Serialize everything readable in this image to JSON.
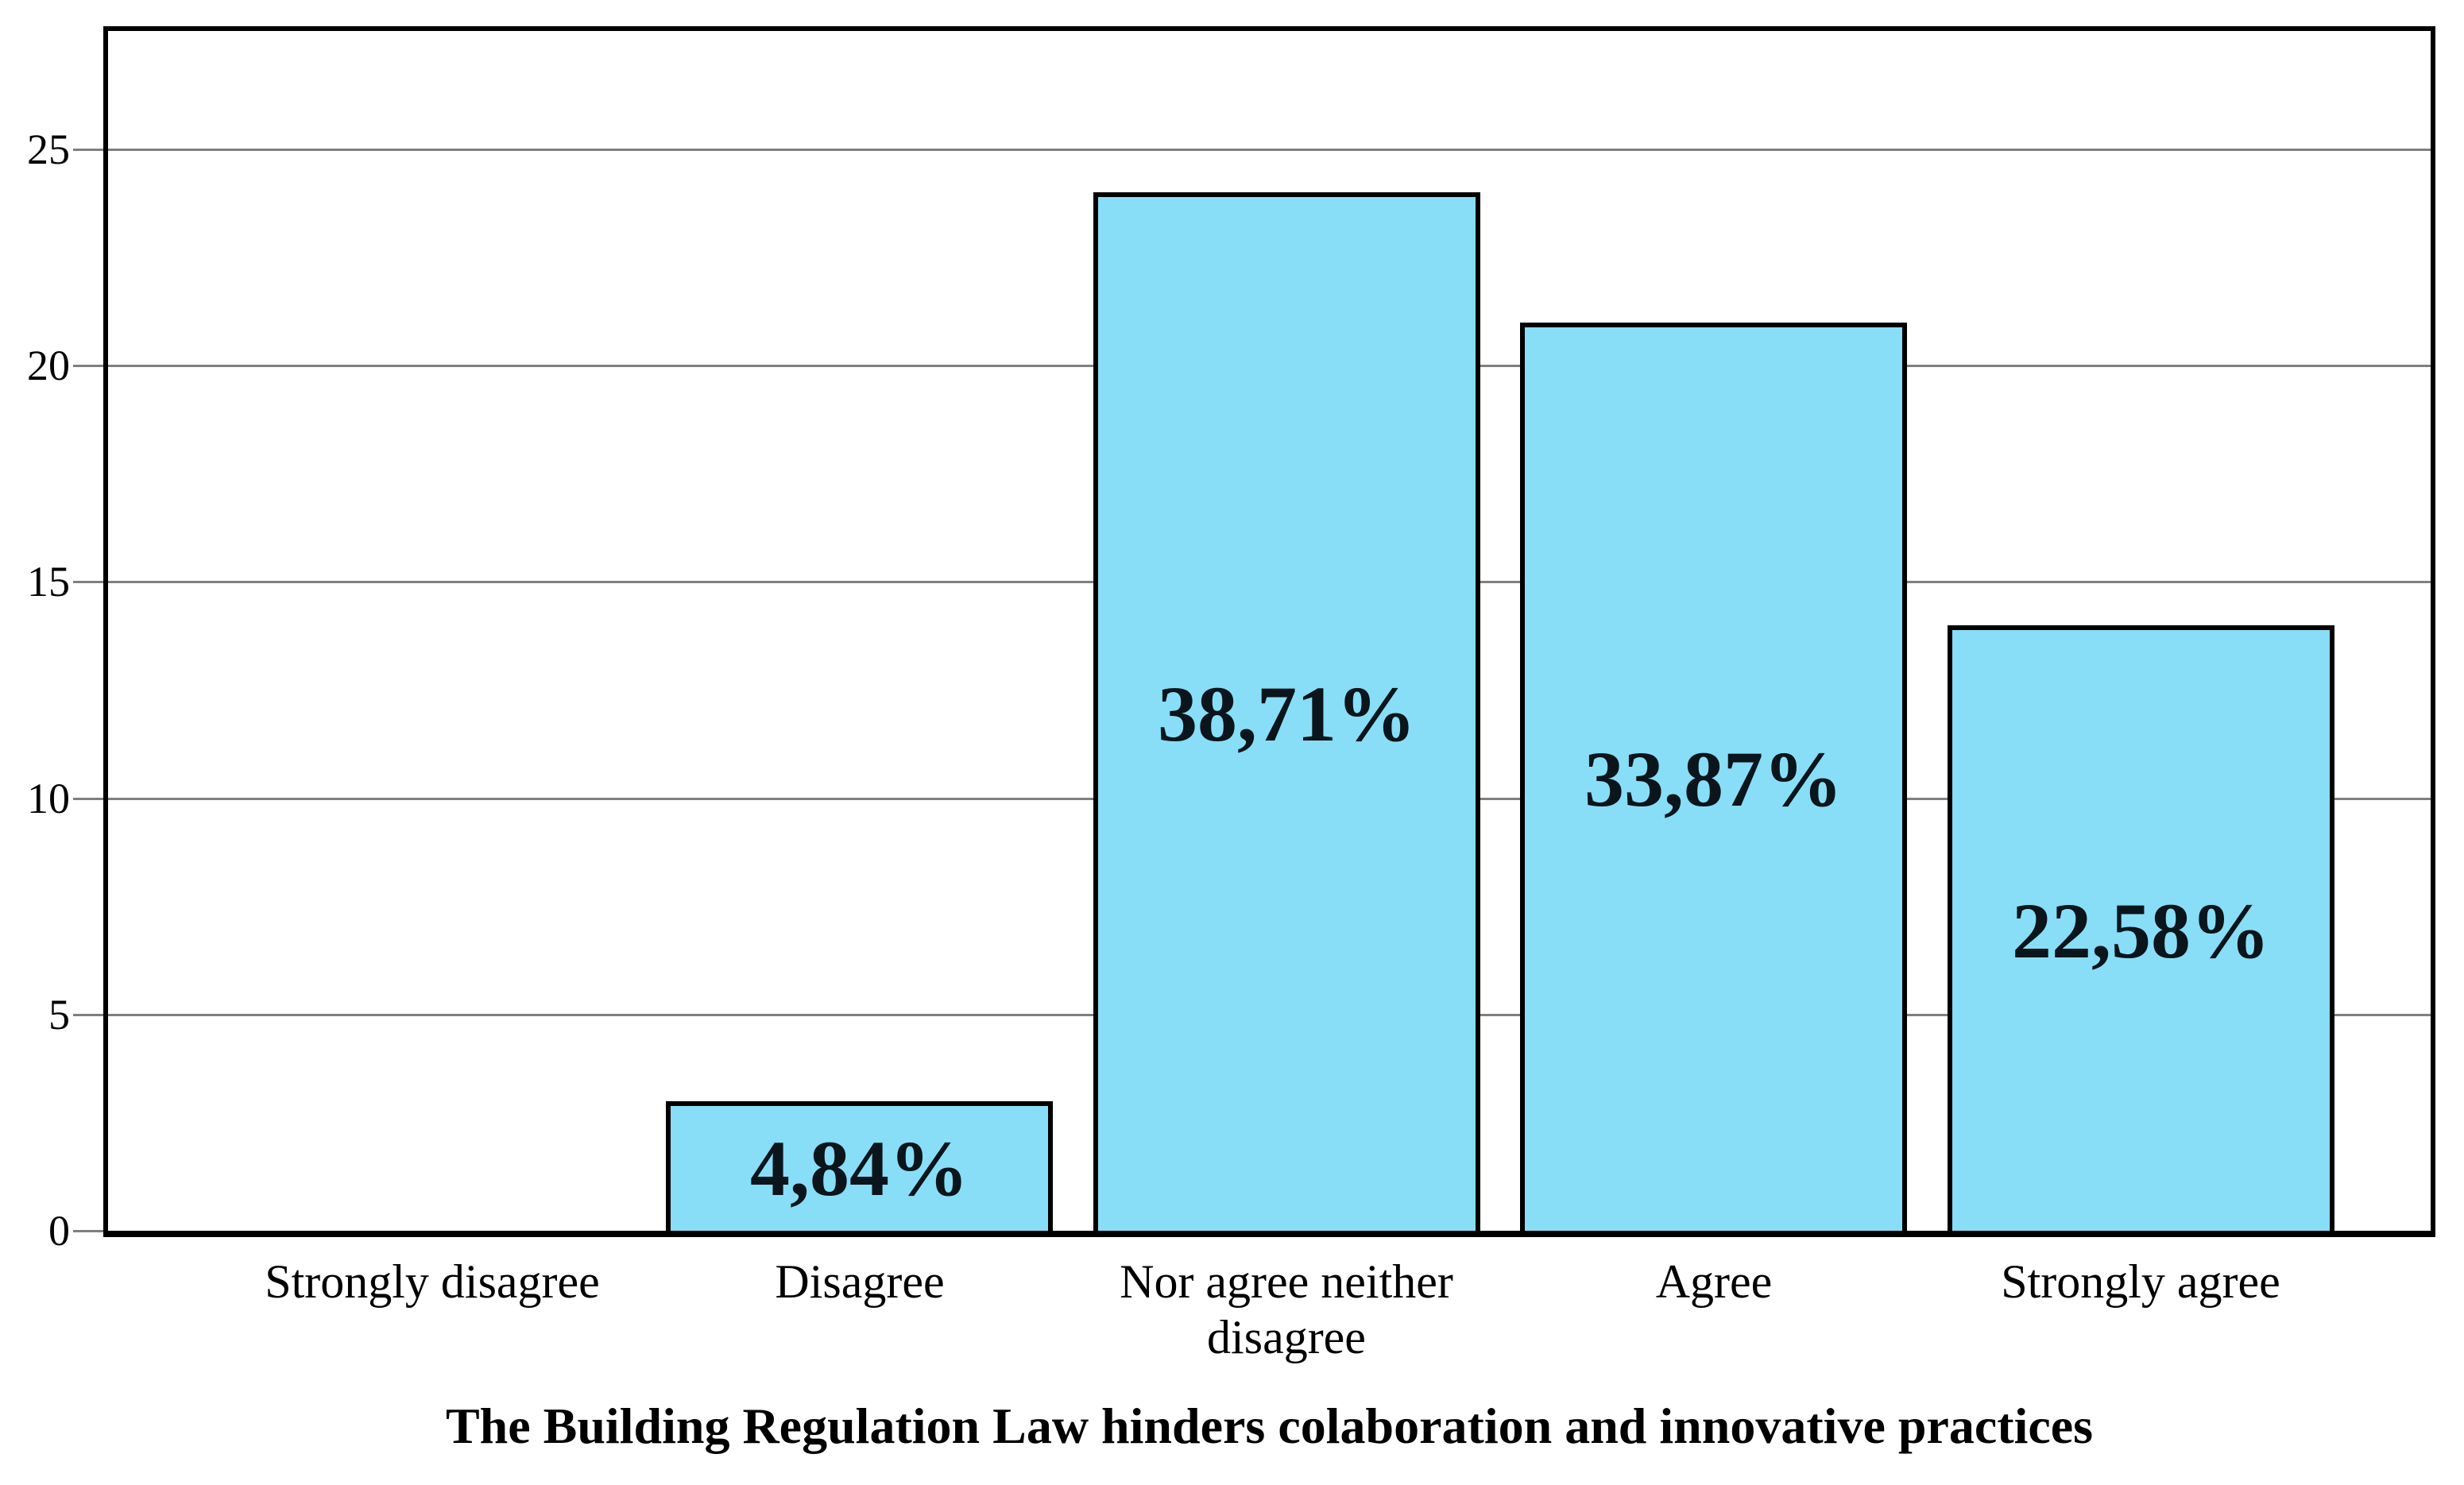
{
  "chart_data": {
    "type": "bar",
    "title": "The Building Regulation Law hinders colaboration and innovative practices",
    "categories": [
      "Strongly disagree",
      "Disagree",
      "Nor agree neither disagree",
      "Agree",
      "Strongly agree"
    ],
    "values": [
      0,
      3,
      24,
      21,
      14
    ],
    "bar_labels": [
      "",
      "4,84%",
      "38,71%",
      "33,87%",
      "22,58%"
    ],
    "yticks": [
      0,
      5,
      10,
      15,
      20,
      25
    ],
    "ylim": [
      0,
      27.7
    ],
    "xlabel": "",
    "ylabel": "",
    "grid": true,
    "legend_position": "none",
    "bar_color": "#88DEF7",
    "bar_border_color": "#000000",
    "gridline_color": "#7f7f7f",
    "text_color": "#000000"
  }
}
